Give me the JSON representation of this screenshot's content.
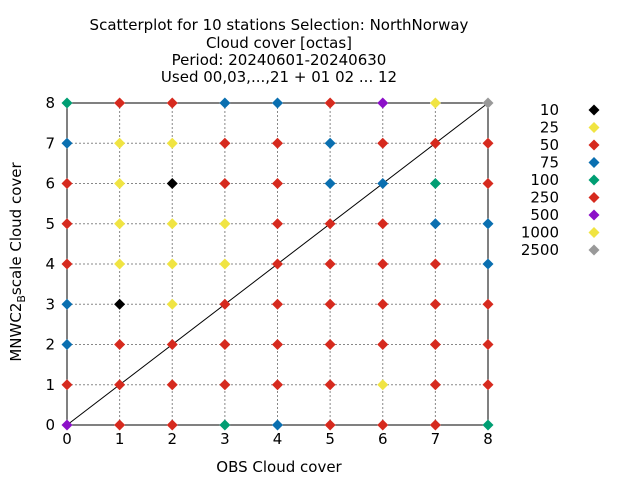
{
  "chart_data": {
    "type": "scatter",
    "title_lines": [
      "Scatterplot for   10 stations Selection: NorthNorway",
      "Cloud cover [octas]",
      "Period: 20240601-20240630",
      "Used 00,03,...,21 + 01 02 ... 12"
    ],
    "xlabel": "OBS Cloud cover",
    "ylabel_main": "MNWC2",
    "ylabel_sub": "B",
    "ylabel_rest": "scale Cloud cover",
    "xlim": [
      0,
      8
    ],
    "ylim": [
      0,
      8
    ],
    "x_ticks": [
      "0",
      "1",
      "2",
      "3",
      "4",
      "5",
      "6",
      "7",
      "8"
    ],
    "y_ticks": [
      "0",
      "1",
      "2",
      "3",
      "4",
      "5",
      "6",
      "7",
      "8"
    ],
    "grid": true,
    "diagonal": true,
    "legend_position": "right",
    "legend": [
      {
        "label": "10",
        "color": "#000000"
      },
      {
        "label": "25",
        "color": "#f0e442"
      },
      {
        "label": "50",
        "color": "#d62a1e"
      },
      {
        "label": "75",
        "color": "#0a6fb0"
      },
      {
        "label": "100",
        "color": "#009e73"
      },
      {
        "label": "250",
        "color": "#d62a1e"
      },
      {
        "label": "500",
        "color": "#8c10c8"
      },
      {
        "label": "1000",
        "color": "#f0e442"
      },
      {
        "label": "2500",
        "color": "#999999"
      }
    ],
    "point_colors": {
      "k": "#000000",
      "y": "#f0e442",
      "r": "#d62a1e",
      "b": "#0a6fb0",
      "g": "#009e73",
      "p": "#8c10c8",
      "s": "#999999"
    },
    "grid_y_from_top": [
      {
        "y": 8,
        "cells": [
          "g",
          "r",
          "r",
          "b",
          "b",
          "r",
          "p",
          "y",
          "s"
        ]
      },
      {
        "y": 7,
        "cells": [
          "b",
          "y",
          "y",
          "r",
          "r",
          "b",
          "r",
          "r",
          "r"
        ]
      },
      {
        "y": 6,
        "cells": [
          "r",
          "y",
          "k",
          "r",
          "r",
          "b",
          "b",
          "g",
          "r"
        ]
      },
      {
        "y": 5,
        "cells": [
          "r",
          "y",
          "y",
          "y",
          "r",
          "r",
          "r",
          "b",
          "b"
        ]
      },
      {
        "y": 4,
        "cells": [
          "r",
          "y",
          "y",
          "y",
          "r",
          "r",
          "r",
          "r",
          "b"
        ]
      },
      {
        "y": 3,
        "cells": [
          "b",
          "k",
          "y",
          "r",
          "r",
          "r",
          "r",
          "r",
          "r"
        ]
      },
      {
        "y": 2,
        "cells": [
          "b",
          "r",
          "r",
          "r",
          "r",
          "r",
          "r",
          "r",
          "r"
        ]
      },
      {
        "y": 1,
        "cells": [
          "r",
          "r",
          "r",
          "r",
          "r",
          "r",
          "y",
          "r",
          "r"
        ]
      },
      {
        "y": 0,
        "cells": [
          "p",
          "r",
          "r",
          "g",
          "b",
          "r",
          "r",
          "r",
          "g"
        ]
      }
    ]
  }
}
